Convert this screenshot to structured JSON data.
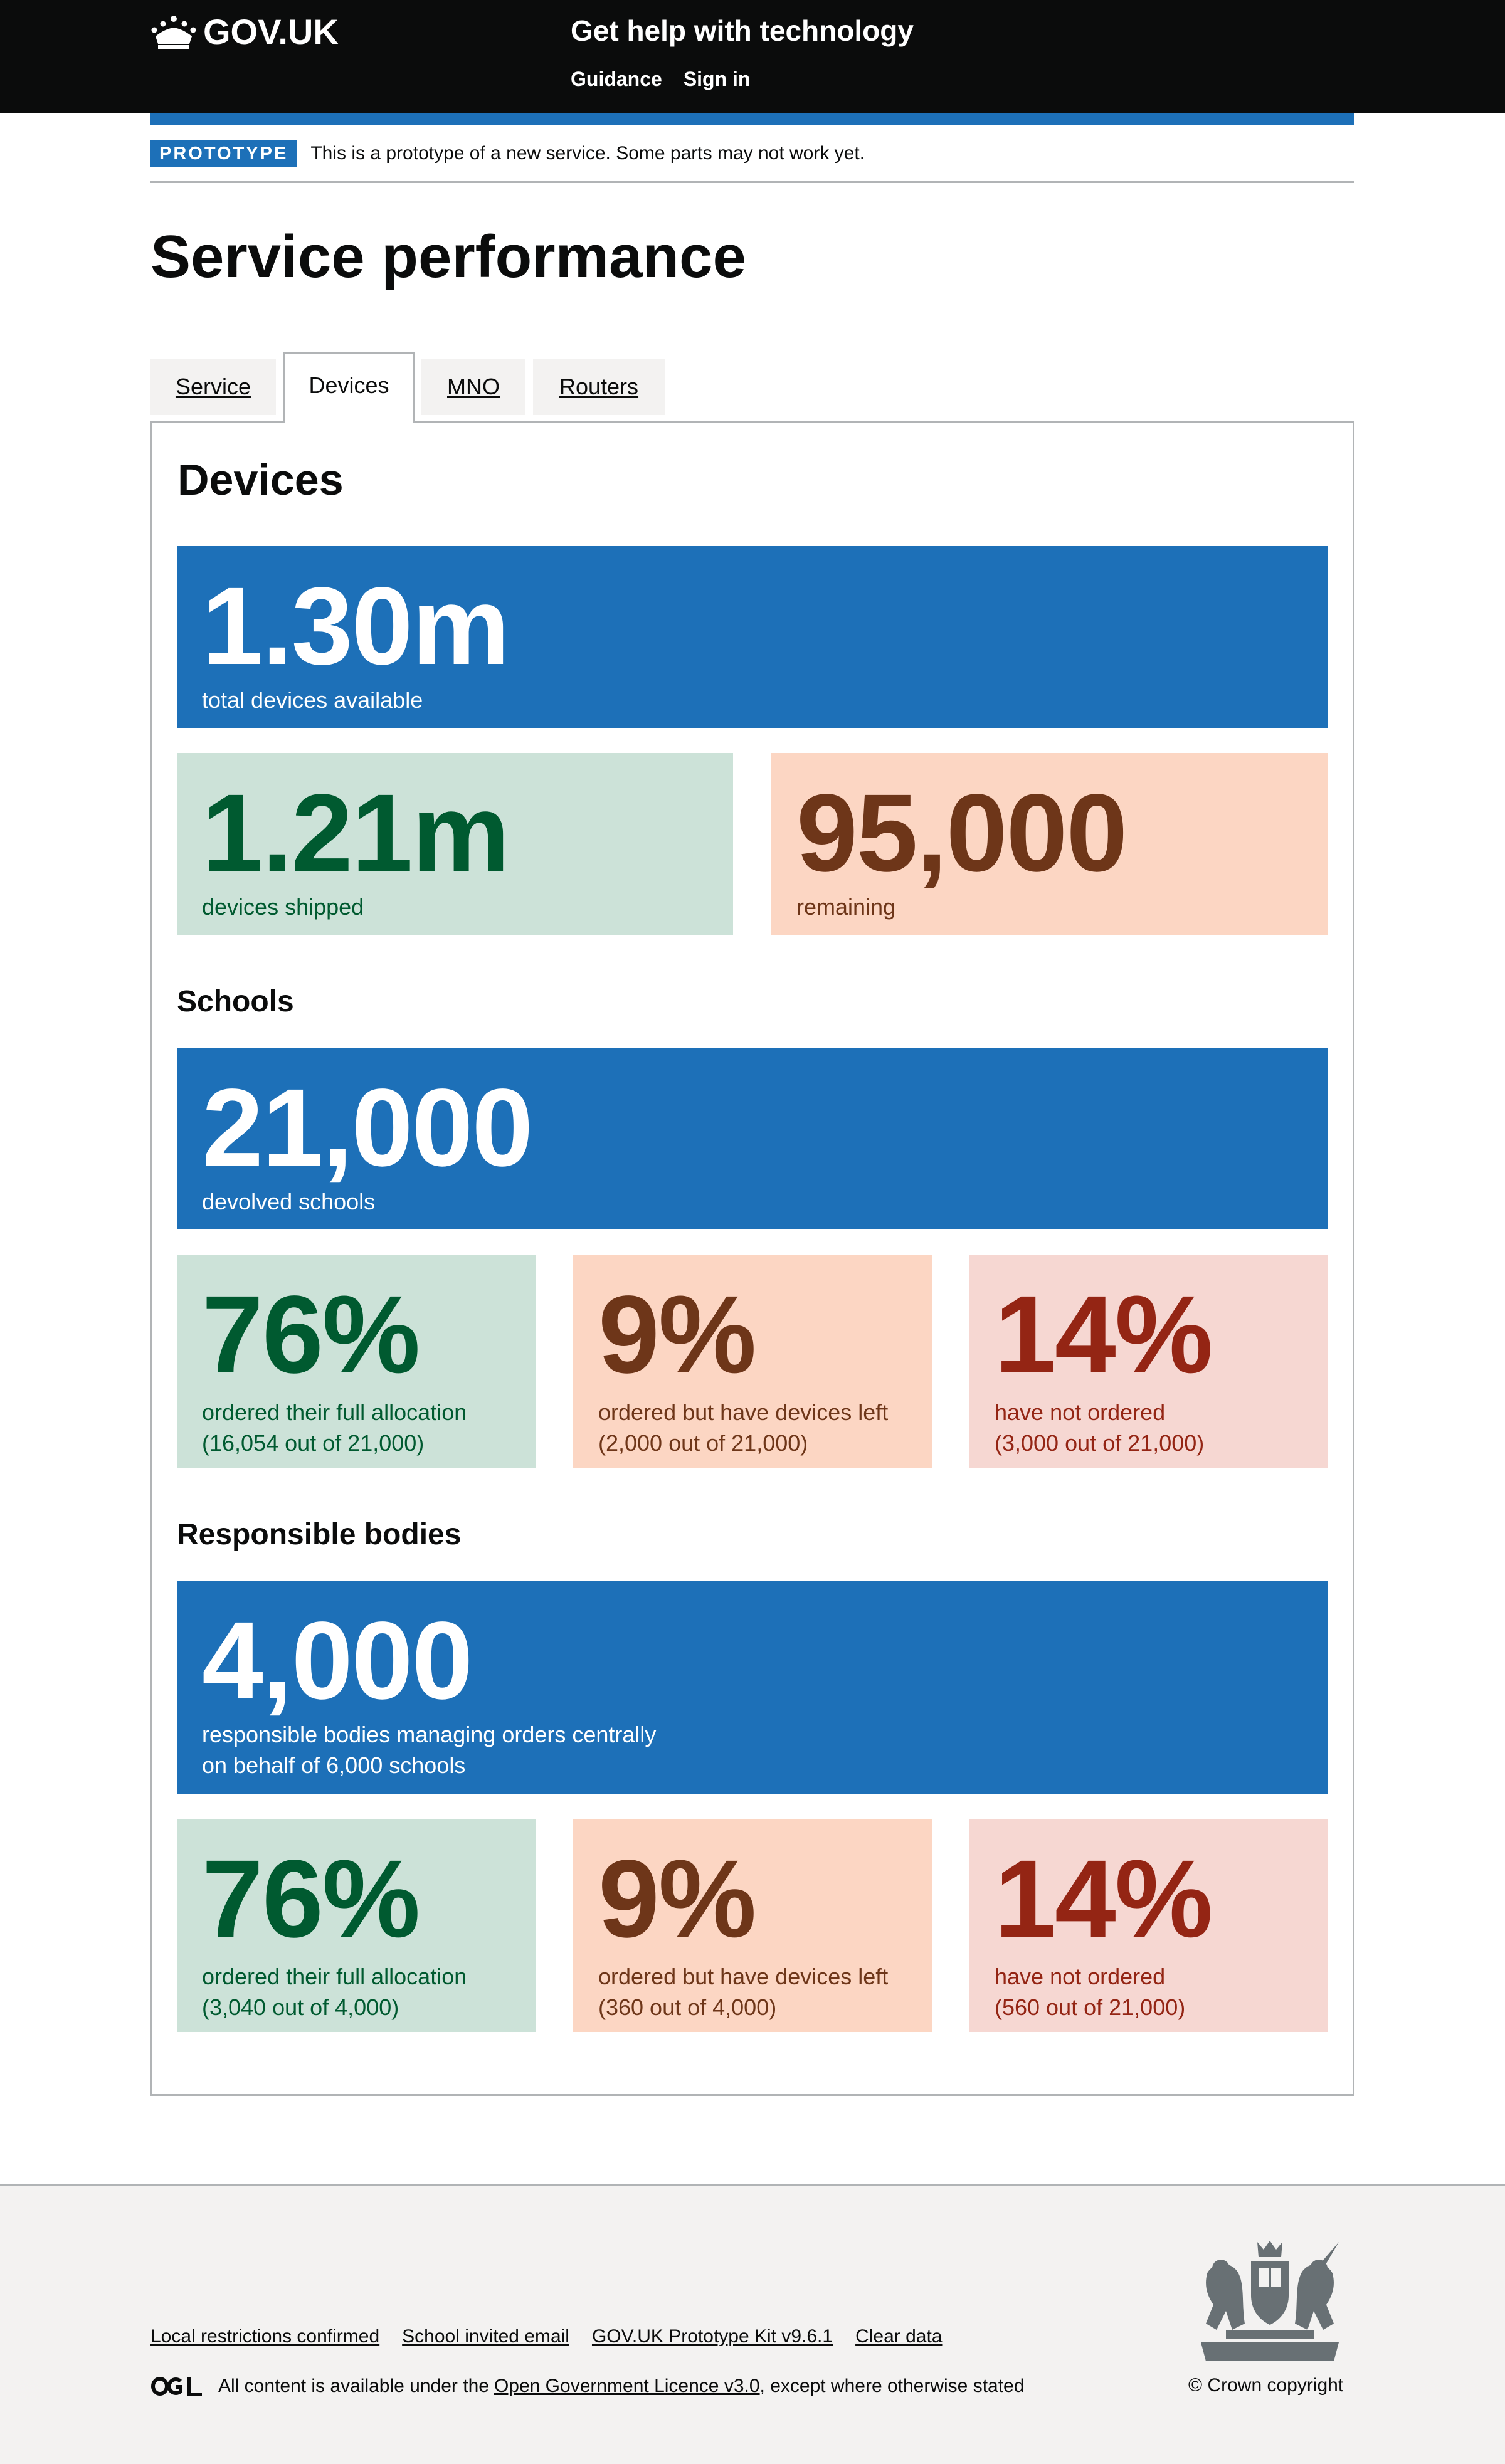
{
  "header": {
    "logo_text": "GOV.UK",
    "service_name": "Get help with technology",
    "nav": [
      "Guidance",
      "Sign in"
    ]
  },
  "phase_banner": {
    "tag": "PROTOTYPE",
    "text": "This is a prototype of a new service. Some parts may not work yet."
  },
  "page": {
    "title": "Service performance"
  },
  "tabs": [
    {
      "label": "Service",
      "selected": false
    },
    {
      "label": "Devices",
      "selected": true
    },
    {
      "label": "MNO",
      "selected": false
    },
    {
      "label": "Routers",
      "selected": false
    }
  ],
  "devices": {
    "heading": "Devices",
    "total": {
      "value": "1.30m",
      "label": "total devices available"
    },
    "shipped": {
      "value": "1.21m",
      "label": "devices shipped"
    },
    "remaining": {
      "value": "95,000",
      "label": "remaining"
    }
  },
  "schools": {
    "heading": "Schools",
    "total": {
      "value": "21,000",
      "label": "devolved schools"
    },
    "full": {
      "value": "76%",
      "label": "ordered their full allocation",
      "detail": "(16,054 out of 21,000)"
    },
    "partial": {
      "value": "9%",
      "label": "ordered but have devices left",
      "detail": "(2,000 out of 21,000)"
    },
    "none": {
      "value": "14%",
      "label": "have not ordered",
      "detail": "(3,000 out of 21,000)"
    }
  },
  "responsible_bodies": {
    "heading": "Responsible bodies",
    "total": {
      "value": "4,000",
      "label": "responsible bodies managing orders centrally",
      "detail": "on behalf of 6,000 schools"
    },
    "full": {
      "value": "76%",
      "label": "ordered their full allocation",
      "detail": "(3,040 out of 4,000)"
    },
    "partial": {
      "value": "9%",
      "label": "ordered but have devices left",
      "detail": "(360 out of 4,000)"
    },
    "none": {
      "value": "14%",
      "label": "have not ordered",
      "detail": "(560 out of 21,000)"
    }
  },
  "footer": {
    "links": [
      "Local restrictions confirmed",
      "School invited email",
      "GOV.UK Prototype Kit v9.6.1",
      "Clear data"
    ],
    "licence_prefix": "All content is available under the",
    "licence_link": "Open Government Licence v3.0",
    "licence_suffix": ", except where otherwise stated",
    "copyright": "© Crown copyright"
  },
  "colors": {
    "header_bg": "#0b0c0c",
    "brand_blue": "#1d70b8",
    "green_bg": "#cce2d8",
    "green_text": "#005a30",
    "orange_bg": "#fcd6c3",
    "orange_text": "#6e3619",
    "red_bg": "#f6d7d2",
    "red_text": "#942514",
    "footer_bg": "#f3f2f1"
  },
  "icons": [
    "crown-icon",
    "ogl-logo-icon",
    "royal-crest-icon"
  ]
}
